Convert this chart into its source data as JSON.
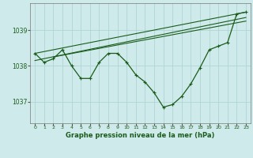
{
  "background_color": "#ceeaea",
  "grid_color": "#afd4d4",
  "line_color": "#1a5c1a",
  "xlim": [
    -0.5,
    23.5
  ],
  "ylim": [
    1036.4,
    1039.75
  ],
  "yticks": [
    1037,
    1038,
    1039
  ],
  "xticks": [
    0,
    1,
    2,
    3,
    4,
    5,
    6,
    7,
    8,
    9,
    10,
    11,
    12,
    13,
    14,
    15,
    16,
    17,
    18,
    19,
    20,
    21,
    22,
    23
  ],
  "xlabel": "Graphe pression niveau de la mer (hPa)",
  "main_series": [
    [
      0,
      1038.35
    ],
    [
      1,
      1038.1
    ],
    [
      2,
      1038.2
    ],
    [
      3,
      1038.45
    ],
    [
      4,
      1038.0
    ],
    [
      5,
      1037.65
    ],
    [
      6,
      1037.65
    ],
    [
      7,
      1038.1
    ],
    [
      8,
      1038.35
    ],
    [
      9,
      1038.35
    ],
    [
      10,
      1038.1
    ],
    [
      11,
      1037.75
    ],
    [
      12,
      1037.55
    ],
    [
      13,
      1037.25
    ],
    [
      14,
      1036.85
    ],
    [
      15,
      1036.92
    ],
    [
      16,
      1037.15
    ],
    [
      17,
      1037.5
    ],
    [
      18,
      1037.95
    ],
    [
      19,
      1038.45
    ],
    [
      20,
      1038.55
    ],
    [
      21,
      1038.65
    ],
    [
      22,
      1039.45
    ],
    [
      23,
      1039.5
    ]
  ],
  "trend_line1": [
    [
      0,
      1038.35
    ],
    [
      23,
      1039.5
    ]
  ],
  "trend_line2": [
    [
      0,
      1038.15
    ],
    [
      23,
      1039.35
    ]
  ],
  "trend_line3": [
    [
      2,
      1038.25
    ],
    [
      23,
      1039.25
    ]
  ]
}
